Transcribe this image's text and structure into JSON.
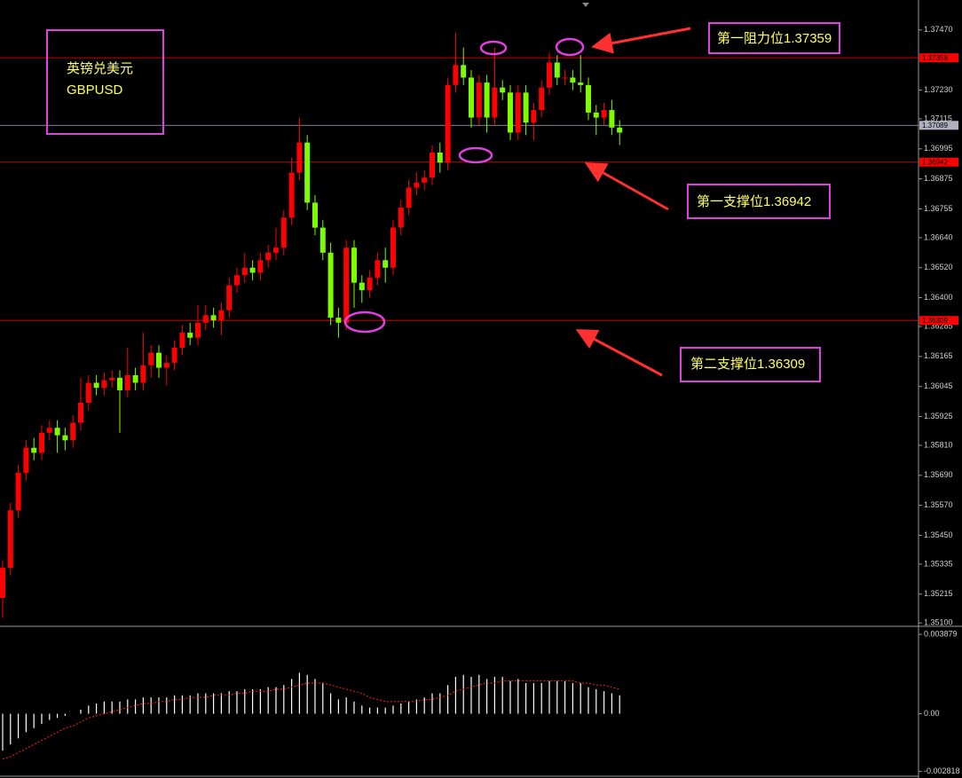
{
  "chart_data": [
    {
      "type": "candlestick",
      "annotations": [
        "英镑兑美元",
        "GBPUSD",
        "第一阻力位1.37359",
        "第一支撑位1.36942",
        "第二支撑位1.36309"
      ],
      "up_color": "#ff0000",
      "down_color": "#7cfc00",
      "ylim": [
        1.3509,
        1.3759
      ],
      "yticks": [
        {
          "value": 1.3747,
          "label": "1.37470"
        },
        {
          "value": 1.3723,
          "label": "1.37230"
        },
        1.37115,
        1.36995,
        1.36875,
        1.36755,
        {
          "value": 1.3664,
          "label": "1.36640"
        },
        {
          "value": 1.3652,
          "label": "1.36520"
        },
        {
          "value": 1.364,
          "label": "1.36400"
        },
        1.36285,
        1.36165,
        1.36045,
        1.35925,
        {
          "value": 1.3581,
          "label": "1.35810"
        },
        {
          "value": 1.3569,
          "label": "1.35690"
        },
        {
          "value": 1.3557,
          "label": "1.35570"
        },
        {
          "value": 1.3545,
          "label": "1.35450"
        },
        1.35335,
        1.35215,
        {
          "value": 1.351,
          "label": "1.35100"
        }
      ],
      "levels": [
        {
          "value": 1.37359,
          "color": "#ff0000"
        },
        {
          "value": 1.37089,
          "color": "#b0b0c0"
        },
        {
          "value": 1.36942,
          "color": "#ff0000"
        },
        {
          "value": 1.36309,
          "color": "#ff0000"
        }
      ],
      "open": [
        1.352,
        1.3532,
        1.3555,
        1.357,
        1.358,
        1.3578,
        1.3586,
        1.3588,
        1.3585,
        1.3583,
        1.359,
        1.3598,
        1.3606,
        1.3604,
        1.3607,
        1.3608,
        1.3603,
        1.3609,
        1.3606,
        1.3613,
        1.3618,
        1.3612,
        1.3614,
        1.362,
        1.3626,
        1.3624,
        1.363,
        1.3633,
        1.3631,
        1.3635,
        1.3645,
        1.3649,
        1.3652,
        1.365,
        1.3655,
        1.3658,
        1.366,
        1.3672,
        1.369,
        1.3702,
        1.3678,
        1.3668,
        1.3658,
        1.3632,
        1.363,
        1.366,
        1.3646,
        1.3643,
        1.3648,
        1.3655,
        1.3652,
        1.3668,
        1.3676,
        1.3684,
        1.3686,
        1.3688,
        1.3698,
        1.3694,
        1.3725,
        1.3733,
        1.3728,
        1.3712,
        1.3726,
        1.3712,
        1.3724,
        1.3722,
        1.3706,
        1.3722,
        1.371,
        1.3715,
        1.3724,
        1.3734,
        1.3728,
        1.3728,
        1.3726,
        1.3725,
        1.3714,
        1.3712,
        1.3715,
        1.3708
      ],
      "high": [
        1.3535,
        1.3558,
        1.3573,
        1.3583,
        1.3584,
        1.3589,
        1.3591,
        1.3591,
        1.3588,
        1.3593,
        1.3608,
        1.3609,
        1.3609,
        1.361,
        1.3611,
        1.3611,
        1.362,
        1.3612,
        1.3626,
        1.3621,
        1.3621,
        1.3617,
        1.3623,
        1.3629,
        1.363,
        1.3637,
        1.3637,
        1.3636,
        1.3638,
        1.3648,
        1.3652,
        1.3658,
        1.3655,
        1.3658,
        1.3661,
        1.3668,
        1.3675,
        1.3696,
        1.3712,
        1.3705,
        1.3681,
        1.3671,
        1.3662,
        1.3636,
        1.3663,
        1.3663,
        1.3649,
        1.3651,
        1.3658,
        1.366,
        1.3671,
        1.3679,
        1.3687,
        1.369,
        1.3691,
        1.3701,
        1.3702,
        1.3728,
        1.3746,
        1.374,
        1.3731,
        1.3729,
        1.3729,
        1.374,
        1.3727,
        1.3725,
        1.3725,
        1.3725,
        1.3718,
        1.3727,
        1.3738,
        1.3737,
        1.3731,
        1.3731,
        1.3737,
        1.3728,
        1.3717,
        1.3718,
        1.3719,
        1.3711
      ],
      "low": [
        1.3512,
        1.3529,
        1.3552,
        1.3567,
        1.3575,
        1.3575,
        1.3583,
        1.3578,
        1.3579,
        1.358,
        1.3587,
        1.3595,
        1.3601,
        1.3601,
        1.3604,
        1.3586,
        1.36,
        1.3603,
        1.3603,
        1.3608,
        1.3608,
        1.3605,
        1.3611,
        1.3617,
        1.3621,
        1.3621,
        1.3627,
        1.3628,
        1.3625,
        1.3632,
        1.3642,
        1.3646,
        1.3647,
        1.3647,
        1.3652,
        1.3655,
        1.3657,
        1.3669,
        1.3687,
        1.3675,
        1.3665,
        1.3655,
        1.3629,
        1.3624,
        1.3627,
        1.3636,
        1.3638,
        1.364,
        1.3645,
        1.3646,
        1.3649,
        1.3665,
        1.3673,
        1.3681,
        1.3683,
        1.3685,
        1.369,
        1.3691,
        1.3722,
        1.3725,
        1.3708,
        1.3709,
        1.3706,
        1.3709,
        1.3719,
        1.3703,
        1.3703,
        1.3705,
        1.3703,
        1.3712,
        1.3721,
        1.3725,
        1.3725,
        1.3723,
        1.3722,
        1.3711,
        1.3705,
        1.3709,
        1.3705,
        1.3701
      ],
      "close": [
        1.3532,
        1.3555,
        1.357,
        1.358,
        1.3578,
        1.3586,
        1.3588,
        1.3585,
        1.3583,
        1.359,
        1.3598,
        1.3606,
        1.3604,
        1.3607,
        1.3608,
        1.3603,
        1.3609,
        1.3606,
        1.3613,
        1.3618,
        1.3612,
        1.3614,
        1.362,
        1.3626,
        1.3624,
        1.363,
        1.3633,
        1.3631,
        1.3635,
        1.3645,
        1.3649,
        1.3652,
        1.365,
        1.3655,
        1.3658,
        1.366,
        1.3672,
        1.369,
        1.3702,
        1.3678,
        1.3668,
        1.3658,
        1.3632,
        1.363,
        1.366,
        1.3646,
        1.3643,
        1.3648,
        1.3655,
        1.3652,
        1.3668,
        1.3676,
        1.3684,
        1.3686,
        1.3688,
        1.3698,
        1.3694,
        1.3725,
        1.3733,
        1.3728,
        1.3712,
        1.3726,
        1.3712,
        1.3724,
        1.3722,
        1.3706,
        1.3722,
        1.371,
        1.3715,
        1.3724,
        1.3734,
        1.3728,
        1.3728,
        1.3726,
        1.3725,
        1.3714,
        1.3712,
        1.3715,
        1.3708,
        1.3706
      ]
    },
    {
      "type": "macd",
      "ylim": [
        -0.003051,
        0.004228
      ],
      "yticks": [
        0.003879,
        {
          "value": 0,
          "label": "0.00"
        },
        -0.002818
      ],
      "histogram": {
        "color": "#ffffff",
        "values": [
          -0.0018,
          -0.0015,
          -0.0012,
          -0.0009,
          -0.0007,
          -0.0005,
          -0.0003,
          -0.0002,
          -0.0001,
          0.0,
          0.0002,
          0.0004,
          0.0005,
          0.0006,
          0.0006,
          0.0006,
          0.0007,
          0.0007,
          0.0008,
          0.0008,
          0.0008,
          0.0008,
          0.0009,
          0.0009,
          0.0009,
          0.001,
          0.001,
          0.001,
          0.001,
          0.0011,
          0.0011,
          0.0012,
          0.0012,
          0.0012,
          0.0013,
          0.0013,
          0.0014,
          0.0017,
          0.002,
          0.0019,
          0.0017,
          0.0015,
          0.001,
          0.0007,
          0.0008,
          0.0006,
          0.0004,
          0.0003,
          0.0003,
          0.0003,
          0.0004,
          0.0005,
          0.0006,
          0.0007,
          0.0008,
          0.001,
          0.001,
          0.0014,
          0.0018,
          0.0019,
          0.0018,
          0.0019,
          0.0017,
          0.0018,
          0.0018,
          0.0016,
          0.0017,
          0.0015,
          0.0015,
          0.0015,
          0.0016,
          0.0016,
          0.0016,
          0.0015,
          0.0015,
          0.0013,
          0.0012,
          0.0011,
          0.001,
          0.0009
        ]
      },
      "signal": {
        "color": "#ff2020",
        "values": [
          -0.0022,
          -0.0021,
          -0.0019,
          -0.0017,
          -0.0015,
          -0.0013,
          -0.0011,
          -0.0009,
          -0.0007,
          -0.0006,
          -0.0004,
          -0.0002,
          -0.0001,
          0.0,
          0.0001,
          0.0002,
          0.0003,
          0.0004,
          0.0005,
          0.0005,
          0.0006,
          0.0006,
          0.0007,
          0.0007,
          0.0008,
          0.0008,
          0.0008,
          0.0009,
          0.0009,
          0.0009,
          0.001,
          0.001,
          0.0011,
          0.0011,
          0.0011,
          0.0012,
          0.0012,
          0.0013,
          0.0014,
          0.0015,
          0.0015,
          0.0015,
          0.0014,
          0.0013,
          0.0012,
          0.0011,
          0.001,
          0.0008,
          0.0007,
          0.0006,
          0.0006,
          0.0006,
          0.0006,
          0.0006,
          0.0007,
          0.0007,
          0.0008,
          0.0009,
          0.0011,
          0.0012,
          0.0013,
          0.0014,
          0.0015,
          0.0015,
          0.0016,
          0.0016,
          0.0016,
          0.0016,
          0.0016,
          0.0016,
          0.0016,
          0.0016,
          0.0016,
          0.0016,
          0.0015,
          0.0015,
          0.0014,
          0.0014,
          0.0013,
          0.0012
        ]
      }
    }
  ]
}
